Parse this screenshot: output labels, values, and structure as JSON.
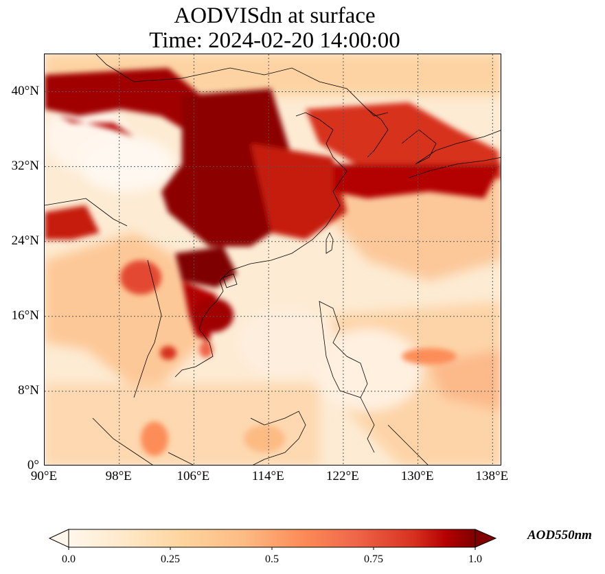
{
  "title_line1": "AODVISdn at surface",
  "title_line2": "Time: 2024-02-20 14:00:00",
  "map": {
    "lon_range": [
      90,
      139
    ],
    "lat_range": [
      0,
      44
    ],
    "gridlines": true,
    "lat_ticks": [
      "0°",
      "8°N",
      "16°N",
      "24°N",
      "32°N",
      "40°N"
    ],
    "lon_ticks": [
      "90°E",
      "98°E",
      "106°E",
      "114°E",
      "122°E",
      "130°E",
      "138°E"
    ],
    "colormap": "OrRd",
    "colors": {
      "low": "#fff5eb",
      "mid": "#fdae6b",
      "high": "#7f0000"
    }
  },
  "colorbar": {
    "label": "AOD550nm",
    "range": [
      0.0,
      1.0
    ],
    "ticks": [
      "0.0",
      "0.25",
      "0.5",
      "0.75",
      "1.0"
    ],
    "extend": "both"
  }
}
